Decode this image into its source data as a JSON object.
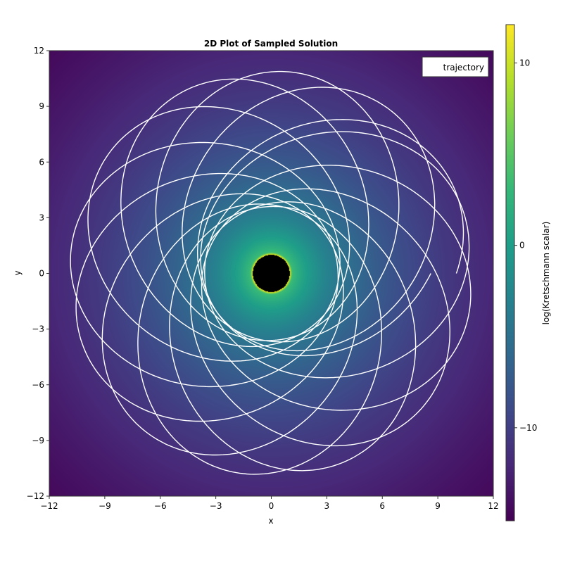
{
  "chart_data": {
    "type": "line",
    "title": "2D Plot of Sampled Solution",
    "xlabel": "x",
    "ylabel": "y",
    "xlim": [
      -12,
      12
    ],
    "ylim": [
      -12,
      12
    ],
    "xticks": [
      "−12",
      "−9",
      "−6",
      "−3",
      "0",
      "3",
      "6",
      "9",
      "12"
    ],
    "yticks": [
      "−12",
      "−9",
      "−6",
      "−3",
      "0",
      "3",
      "6",
      "9",
      "12"
    ],
    "xtick_values": [
      -12,
      -9,
      -6,
      -3,
      0,
      3,
      6,
      9,
      12
    ],
    "ytick_values": [
      -12,
      -9,
      -6,
      -3,
      0,
      3,
      6,
      9,
      12
    ],
    "grid": false,
    "legend": {
      "placement": "top-right",
      "entries": [
        "trajectory"
      ]
    },
    "series": [
      {
        "name": "trajectory",
        "color": "#ffffff",
        "orbit": {
          "start": [
            10,
            0
          ],
          "r_min": 3.6,
          "r_max": 10.9,
          "orbits": 14,
          "precession_deg_per_orbit": 27
        }
      }
    ],
    "heatmap": {
      "colormap": "viridis",
      "clim": [
        -15.1,
        12.1
      ],
      "horizon_radius": 1.0,
      "horizon_color": "#000000"
    },
    "colorbar": {
      "label": "log(Kretschmann scalar)",
      "ticks": [
        "10",
        "0",
        "−10"
      ],
      "tick_values": [
        10,
        0,
        -10
      ]
    }
  }
}
